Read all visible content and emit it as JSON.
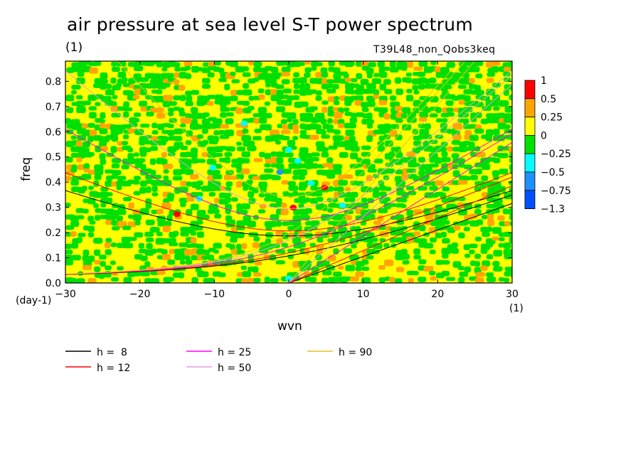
{
  "title": "air pressure at sea level S-T power spectrum",
  "title_unit": "(1)",
  "experiment": "T39L48_non_Qobs3keq",
  "chart_data": {
    "type": "heatmap",
    "xlabel": "wvn",
    "xunit": "(1)",
    "ylabel": "freq",
    "yunit": "(day-1)",
    "xlim": [
      -30,
      30
    ],
    "ylim": [
      0,
      0.88
    ],
    "xticks": [
      "-30",
      "-20",
      "-10",
      "0",
      "10",
      "20",
      "30"
    ],
    "yticks": [
      "0.0",
      "0.1",
      "0.2",
      "0.3",
      "0.4",
      "0.5",
      "0.6",
      "0.7",
      "0.8"
    ],
    "colorbar": {
      "labels": [
        "1",
        "0.5",
        "0.25",
        "0",
        "-0.25",
        "-0.5",
        "-0.75",
        "-1.3"
      ],
      "colors": [
        "#ff0000",
        "#ffa500",
        "#ffff00",
        "#00e000",
        "#00ffff",
        "#1e90ff",
        "#0050ff"
      ]
    },
    "dispersion_curves": [
      {
        "label": "h =  8",
        "h": 8,
        "color": "#000000"
      },
      {
        "label": "h = 12",
        "h": 12,
        "color": "#ff0000"
      },
      {
        "label": "h = 25",
        "h": 25,
        "color": "#ff00ff"
      },
      {
        "label": "h = 50",
        "h": 50,
        "color": "#e0a0e0"
      },
      {
        "label": "h = 90",
        "h": 90,
        "color": "#e8c020"
      }
    ]
  }
}
